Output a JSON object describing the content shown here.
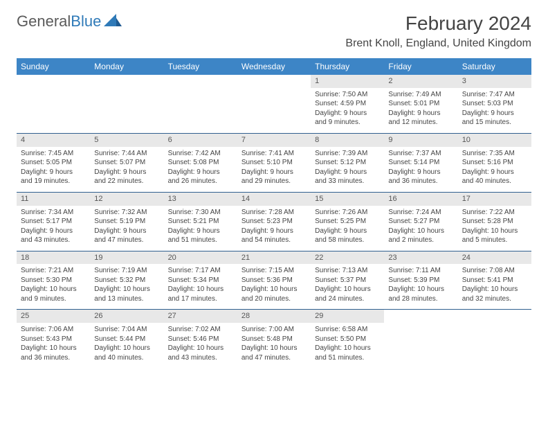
{
  "brand": {
    "part1": "General",
    "part2": "Blue"
  },
  "title": "February 2024",
  "location": "Brent Knoll, England, United Kingdom",
  "colors": {
    "header_bg": "#3d85c6",
    "header_text": "#ffffff",
    "row_border": "#2f5f8f",
    "daynum_bg": "#e8e8e8",
    "text": "#444444",
    "brand_gray": "#5a5a5a",
    "brand_blue": "#2f7ab8",
    "page_bg": "#ffffff"
  },
  "weekdays": [
    "Sunday",
    "Monday",
    "Tuesday",
    "Wednesday",
    "Thursday",
    "Friday",
    "Saturday"
  ],
  "weeks": [
    [
      null,
      null,
      null,
      null,
      {
        "d": "1",
        "sr": "7:50 AM",
        "ss": "4:59 PM",
        "dl": "9 hours and 9 minutes."
      },
      {
        "d": "2",
        "sr": "7:49 AM",
        "ss": "5:01 PM",
        "dl": "9 hours and 12 minutes."
      },
      {
        "d": "3",
        "sr": "7:47 AM",
        "ss": "5:03 PM",
        "dl": "9 hours and 15 minutes."
      }
    ],
    [
      {
        "d": "4",
        "sr": "7:45 AM",
        "ss": "5:05 PM",
        "dl": "9 hours and 19 minutes."
      },
      {
        "d": "5",
        "sr": "7:44 AM",
        "ss": "5:07 PM",
        "dl": "9 hours and 22 minutes."
      },
      {
        "d": "6",
        "sr": "7:42 AM",
        "ss": "5:08 PM",
        "dl": "9 hours and 26 minutes."
      },
      {
        "d": "7",
        "sr": "7:41 AM",
        "ss": "5:10 PM",
        "dl": "9 hours and 29 minutes."
      },
      {
        "d": "8",
        "sr": "7:39 AM",
        "ss": "5:12 PM",
        "dl": "9 hours and 33 minutes."
      },
      {
        "d": "9",
        "sr": "7:37 AM",
        "ss": "5:14 PM",
        "dl": "9 hours and 36 minutes."
      },
      {
        "d": "10",
        "sr": "7:35 AM",
        "ss": "5:16 PM",
        "dl": "9 hours and 40 minutes."
      }
    ],
    [
      {
        "d": "11",
        "sr": "7:34 AM",
        "ss": "5:17 PM",
        "dl": "9 hours and 43 minutes."
      },
      {
        "d": "12",
        "sr": "7:32 AM",
        "ss": "5:19 PM",
        "dl": "9 hours and 47 minutes."
      },
      {
        "d": "13",
        "sr": "7:30 AM",
        "ss": "5:21 PM",
        "dl": "9 hours and 51 minutes."
      },
      {
        "d": "14",
        "sr": "7:28 AM",
        "ss": "5:23 PM",
        "dl": "9 hours and 54 minutes."
      },
      {
        "d": "15",
        "sr": "7:26 AM",
        "ss": "5:25 PM",
        "dl": "9 hours and 58 minutes."
      },
      {
        "d": "16",
        "sr": "7:24 AM",
        "ss": "5:27 PM",
        "dl": "10 hours and 2 minutes."
      },
      {
        "d": "17",
        "sr": "7:22 AM",
        "ss": "5:28 PM",
        "dl": "10 hours and 5 minutes."
      }
    ],
    [
      {
        "d": "18",
        "sr": "7:21 AM",
        "ss": "5:30 PM",
        "dl": "10 hours and 9 minutes."
      },
      {
        "d": "19",
        "sr": "7:19 AM",
        "ss": "5:32 PM",
        "dl": "10 hours and 13 minutes."
      },
      {
        "d": "20",
        "sr": "7:17 AM",
        "ss": "5:34 PM",
        "dl": "10 hours and 17 minutes."
      },
      {
        "d": "21",
        "sr": "7:15 AM",
        "ss": "5:36 PM",
        "dl": "10 hours and 20 minutes."
      },
      {
        "d": "22",
        "sr": "7:13 AM",
        "ss": "5:37 PM",
        "dl": "10 hours and 24 minutes."
      },
      {
        "d": "23",
        "sr": "7:11 AM",
        "ss": "5:39 PM",
        "dl": "10 hours and 28 minutes."
      },
      {
        "d": "24",
        "sr": "7:08 AM",
        "ss": "5:41 PM",
        "dl": "10 hours and 32 minutes."
      }
    ],
    [
      {
        "d": "25",
        "sr": "7:06 AM",
        "ss": "5:43 PM",
        "dl": "10 hours and 36 minutes."
      },
      {
        "d": "26",
        "sr": "7:04 AM",
        "ss": "5:44 PM",
        "dl": "10 hours and 40 minutes."
      },
      {
        "d": "27",
        "sr": "7:02 AM",
        "ss": "5:46 PM",
        "dl": "10 hours and 43 minutes."
      },
      {
        "d": "28",
        "sr": "7:00 AM",
        "ss": "5:48 PM",
        "dl": "10 hours and 47 minutes."
      },
      {
        "d": "29",
        "sr": "6:58 AM",
        "ss": "5:50 PM",
        "dl": "10 hours and 51 minutes."
      },
      null,
      null
    ]
  ],
  "labels": {
    "sunrise": "Sunrise:",
    "sunset": "Sunset:",
    "daylight": "Daylight:"
  }
}
